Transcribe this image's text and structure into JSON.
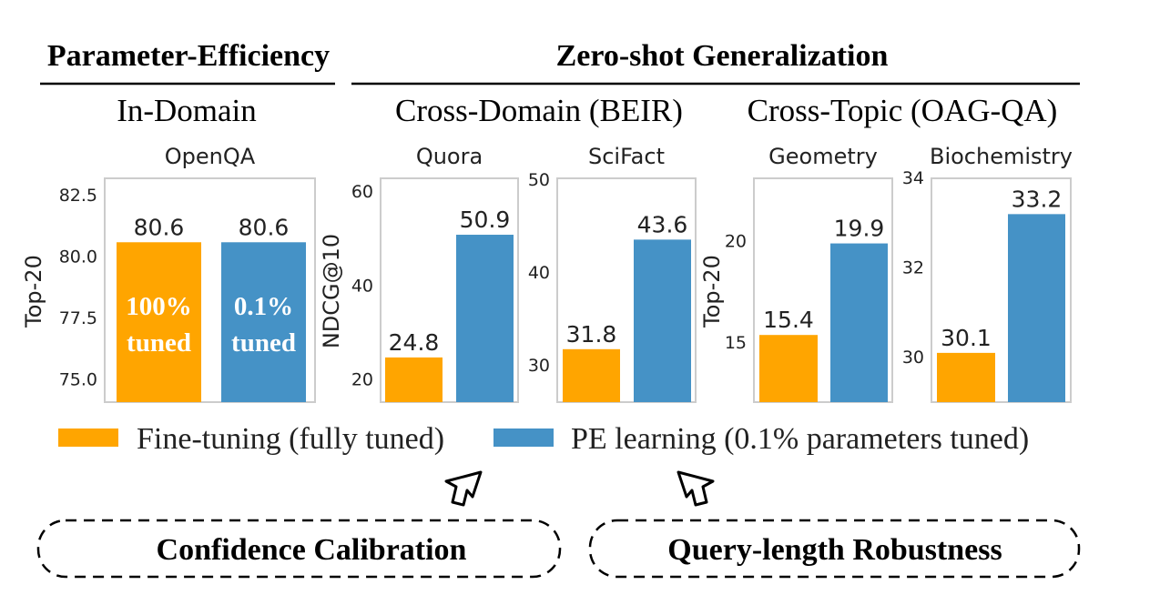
{
  "headers": {
    "left": "Parameter-Efficiency",
    "right": "Zero-shot Generalization",
    "sub_in_domain": "In-Domain",
    "sub_cross_domain": "Cross-Domain (BEIR)",
    "sub_cross_topic": "Cross-Topic (OAG-QA)"
  },
  "colors": {
    "fine_tuning": "#FFA500",
    "pe_learning": "#4592C6",
    "frame": "#cccccc",
    "text": "#222222"
  },
  "chart_data": [
    {
      "type": "bar",
      "title": "OpenQA",
      "ylabel": "Top-20",
      "ylim": [
        74.1,
        83.2
      ],
      "yticks": [
        "75.0",
        "77.5",
        "80.0",
        "82.5"
      ],
      "series": [
        {
          "name": "Fine-tuning (fully tuned)",
          "values": [
            80.6
          ]
        },
        {
          "name": "PE learning (0.1% parameters tuned)",
          "values": [
            80.6
          ]
        }
      ],
      "data_labels": [
        "80.6",
        "80.6"
      ],
      "bar_text": [
        "100%\ntuned",
        "0.1%\ntuned"
      ]
    },
    {
      "type": "bar",
      "title": "Quora",
      "ylabel": "NDCG@10",
      "ylim": [
        15.3,
        62.9
      ],
      "yticks": [
        "20",
        "40",
        "60"
      ],
      "series": [
        {
          "name": "Fine-tuning (fully tuned)",
          "values": [
            24.8
          ]
        },
        {
          "name": "PE learning (0.1% parameters tuned)",
          "values": [
            50.9
          ]
        }
      ],
      "data_labels": [
        "24.8",
        "50.9"
      ]
    },
    {
      "type": "bar",
      "title": "SciFact",
      "ylabel": "",
      "ylim": [
        26.1,
        50.2
      ],
      "yticks": [
        "30",
        "40",
        "50"
      ],
      "series": [
        {
          "name": "Fine-tuning (fully tuned)",
          "values": [
            31.8
          ]
        },
        {
          "name": "PE learning (0.1% parameters tuned)",
          "values": [
            43.6
          ]
        }
      ],
      "data_labels": [
        "31.8",
        "43.6"
      ]
    },
    {
      "type": "bar",
      "title": "Geometry",
      "ylabel": "Top-20",
      "ylim": [
        12.1,
        23.1
      ],
      "yticks": [
        "15",
        "20"
      ],
      "series": [
        {
          "name": "Fine-tuning (fully tuned)",
          "values": [
            15.4
          ]
        },
        {
          "name": "PE learning (0.1% parameters tuned)",
          "values": [
            19.9
          ]
        }
      ],
      "data_labels": [
        "15.4",
        "19.9"
      ]
    },
    {
      "type": "bar",
      "title": "Biochemistry",
      "ylabel": "",
      "ylim": [
        29.0,
        34.0
      ],
      "yticks": [
        "30",
        "32",
        "34"
      ],
      "series": [
        {
          "name": "Fine-tuning (fully tuned)",
          "values": [
            30.1
          ]
        },
        {
          "name": "PE learning (0.1% parameters tuned)",
          "values": [
            33.2
          ]
        }
      ],
      "data_labels": [
        "30.1",
        "33.2"
      ]
    }
  ],
  "legend": {
    "items": [
      "Fine-tuning (fully tuned)",
      "PE learning (0.1% parameters tuned)"
    ],
    "placement": "bottom"
  },
  "boxes": {
    "left": "Confidence Calibration",
    "right": "Query-length Robustness"
  }
}
